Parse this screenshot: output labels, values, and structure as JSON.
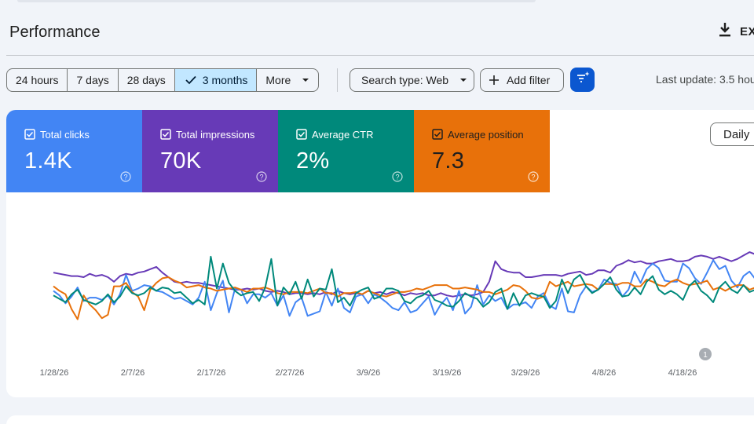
{
  "header": {
    "title": "Performance",
    "export_label": "EX"
  },
  "icons": {
    "export": "download-icon",
    "check": "check-icon",
    "caret": "chevron-down-icon",
    "plus": "plus-icon",
    "filter_sparkle": "filter-sparkle-icon",
    "checkbox": "checkbox-checked-icon",
    "help": "help-circle-icon"
  },
  "toolbar": {
    "ranges": [
      {
        "label": "24 hours",
        "selected": false
      },
      {
        "label": "7 days",
        "selected": false
      },
      {
        "label": "28 days",
        "selected": false
      },
      {
        "label": "3 months",
        "selected": true
      },
      {
        "label": "More",
        "selected": false
      }
    ],
    "search_type_label": "Search type: Web",
    "add_filter_label": "Add filter",
    "last_update": "Last update: 3.5 hou"
  },
  "metrics": [
    {
      "label": "Total clicks",
      "value": "1.4K",
      "color": "#4285f4"
    },
    {
      "label": "Total impressions",
      "value": "70K",
      "color": "#673ab7"
    },
    {
      "label": "Average CTR",
      "value": "2%",
      "color": "#00897b"
    },
    {
      "label": "Average position",
      "value": "7.3",
      "color": "#e8710a"
    }
  ],
  "granularity_label": "Daily",
  "chart_data": {
    "type": "line",
    "x_tick_labels": [
      "1/28/26",
      "2/7/26",
      "2/17/26",
      "2/27/26",
      "3/9/26",
      "3/19/26",
      "3/29/26",
      "4/8/26",
      "4/18/26"
    ],
    "annotation_marker": "1",
    "y_axis_labels_shown": false,
    "grid": false,
    "series": [
      {
        "color": "#673ab7",
        "values": [
          0.64,
          0.63,
          0.62,
          0.61,
          0.61,
          0.6,
          0.63,
          0.61,
          0.62,
          0.6,
          0.56,
          0.61,
          0.63,
          0.62,
          0.64,
          0.65,
          0.67,
          0.69,
          0.64,
          0.6,
          0.56,
          0.55,
          0.56,
          0.55,
          0.55,
          0.54,
          0.53,
          0.52,
          0.51,
          0.5,
          0.49,
          0.49,
          0.5,
          0.49,
          0.5,
          0.48,
          0.47,
          0.48,
          0.47,
          0.45,
          0.46,
          0.46,
          0.45,
          0.46,
          0.45,
          0.47,
          0.45,
          0.48,
          0.46,
          0.45,
          0.46,
          0.45,
          0.48,
          0.46,
          0.47,
          0.45,
          0.47,
          0.46,
          0.44,
          0.46,
          0.45,
          0.46,
          0.44,
          0.44,
          0.46,
          0.44,
          0.43,
          0.44,
          0.45,
          0.44,
          0.45,
          0.47,
          0.56,
          0.74,
          0.67,
          0.65,
          0.64,
          0.64,
          0.6,
          0.6,
          0.61,
          0.62,
          0.62,
          0.62,
          0.61,
          0.63,
          0.64,
          0.65,
          0.62,
          0.63,
          0.66,
          0.66,
          0.64,
          0.7,
          0.72,
          0.75,
          0.73,
          0.74,
          0.72,
          0.72,
          0.74,
          0.75,
          0.76,
          0.74,
          0.74,
          0.75,
          0.78,
          0.79,
          0.78,
          0.76,
          0.78,
          0.76,
          0.74,
          0.76,
          0.79,
          0.82,
          0.8
        ]
      },
      {
        "color": "#4285f4",
        "values": [
          0.48,
          0.44,
          0.37,
          0.43,
          0.51,
          0.39,
          0.42,
          0.42,
          0.4,
          0.44,
          0.36,
          0.45,
          0.62,
          0.48,
          0.5,
          0.53,
          0.52,
          0.48,
          0.47,
          0.44,
          0.41,
          0.42,
          0.39,
          0.36,
          0.42,
          0.56,
          0.31,
          0.46,
          0.57,
          0.29,
          0.5,
          0.49,
          0.37,
          0.45,
          0.45,
          0.42,
          0.46,
          0.35,
          0.44,
          0.26,
          0.38,
          0.42,
          0.26,
          0.28,
          0.3,
          0.47,
          0.35,
          0.5,
          0.33,
          0.29,
          0.43,
          0.45,
          0.37,
          0.45,
          0.42,
          0.38,
          0.33,
          0.31,
          0.38,
          0.29,
          0.31,
          0.37,
          0.43,
          0.27,
          0.36,
          0.42,
          0.31,
          0.48,
          0.28,
          0.34,
          0.53,
          0.36,
          0.44,
          0.39,
          0.42,
          0.32,
          0.36,
          0.36,
          0.38,
          0.33,
          0.43,
          0.46,
          0.35,
          0.32,
          0.5,
          0.3,
          0.29,
          0.44,
          0.52,
          0.47,
          0.49,
          0.58,
          0.55,
          0.54,
          0.43,
          0.49,
          0.65,
          0.55,
          0.67,
          0.72,
          0.68,
          0.57,
          0.56,
          0.56,
          0.72,
          0.68,
          0.59,
          0.54,
          0.64,
          0.75,
          0.67,
          0.7,
          0.57,
          0.51,
          0.61,
          0.65,
          0.58
        ]
      },
      {
        "color": "#e8710a",
        "values": [
          0.52,
          0.48,
          0.45,
          0.32,
          0.23,
          0.44,
          0.36,
          0.31,
          0.24,
          0.27,
          0.52,
          0.52,
          0.55,
          0.47,
          0.43,
          0.31,
          0.49,
          0.55,
          0.59,
          0.6,
          0.57,
          0.55,
          0.51,
          0.52,
          0.53,
          0.51,
          0.5,
          0.48,
          0.49,
          0.5,
          0.51,
          0.49,
          0.47,
          0.5,
          0.5,
          0.51,
          0.49,
          0.46,
          0.45,
          0.47,
          0.47,
          0.47,
          0.46,
          0.48,
          0.5,
          0.46,
          0.46,
          0.43,
          0.46,
          0.46,
          0.47,
          0.45,
          0.48,
          0.46,
          0.44,
          0.43,
          0.45,
          0.47,
          0.47,
          0.48,
          0.5,
          0.49,
          0.51,
          0.53,
          0.53,
          0.53,
          0.5,
          0.5,
          0.51,
          0.5,
          0.49,
          0.47,
          0.47,
          0.45,
          0.47,
          0.49,
          0.53,
          0.52,
          0.48,
          0.42,
          0.41,
          0.43,
          0.56,
          0.52,
          0.54,
          0.56,
          0.52,
          0.53,
          0.54,
          0.53,
          0.49,
          0.54,
          0.54,
          0.53,
          0.55,
          0.55,
          0.52,
          0.52,
          0.58,
          0.56,
          0.53,
          0.52,
          0.56,
          0.58,
          0.55,
          0.53,
          0.54,
          0.55,
          0.57,
          0.49,
          0.51,
          0.48,
          0.51,
          0.53,
          0.53,
          0.49,
          0.51
        ]
      },
      {
        "color": "#00897b",
        "values": [
          0.44,
          0.41,
          0.38,
          0.45,
          0.49,
          0.4,
          0.38,
          0.36,
          0.39,
          0.45,
          0.38,
          0.43,
          0.52,
          0.46,
          0.44,
          0.46,
          0.51,
          0.48,
          0.51,
          0.5,
          0.46,
          0.47,
          0.42,
          0.37,
          0.4,
          0.36,
          0.78,
          0.5,
          0.72,
          0.55,
          0.48,
          0.44,
          0.46,
          0.47,
          0.39,
          0.51,
          0.76,
          0.35,
          0.51,
          0.45,
          0.56,
          0.41,
          0.58,
          0.43,
          0.5,
          0.49,
          0.67,
          0.38,
          0.42,
          0.35,
          0.46,
          0.49,
          0.51,
          0.41,
          0.43,
          0.5,
          0.5,
          0.48,
          0.39,
          0.37,
          0.42,
          0.44,
          0.48,
          0.4,
          0.38,
          0.35,
          0.34,
          0.39,
          0.46,
          0.43,
          0.41,
          0.34,
          0.38,
          0.47,
          0.5,
          0.32,
          0.46,
          0.35,
          0.44,
          0.46,
          0.44,
          0.43,
          0.33,
          0.39,
          0.58,
          0.46,
          0.58,
          0.62,
          0.52,
          0.46,
          0.49,
          0.54,
          0.6,
          0.49,
          0.43,
          0.44,
          0.51,
          0.45,
          0.56,
          0.61,
          0.49,
          0.45,
          0.48,
          0.45,
          0.4,
          0.52,
          0.57,
          0.48,
          0.44,
          0.38,
          0.51,
          0.56,
          0.49,
          0.46,
          0.53,
          0.47,
          0.49
        ]
      }
    ]
  }
}
